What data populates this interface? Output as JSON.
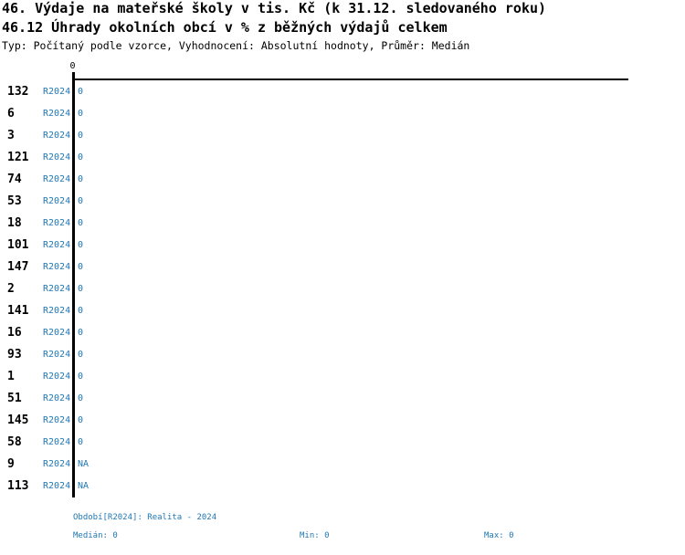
{
  "colors": {
    "accent_blue": "#1f77b4",
    "axis_black": "#000000",
    "background": "#ffffff"
  },
  "chart_data": {
    "type": "bar",
    "orientation": "horizontal",
    "title": "46. Výdaje na mateřské školy v tis. Kč (k 31.12. sledovaného roku)",
    "subtitle": "46.12 Úhrady okolních obcí v % z běžných výdajů celkem",
    "meta": "Typ: Počítaný podle vzorce, Vyhodnocení: Absolutní hodnoty, Průměr: Medián",
    "series_name": "R2024",
    "categories": [
      "132",
      "6",
      "3",
      "121",
      "74",
      "53",
      "18",
      "101",
      "147",
      "2",
      "141",
      "16",
      "93",
      "1",
      "51",
      "145",
      "58",
      "9",
      "113"
    ],
    "values": [
      0,
      0,
      0,
      0,
      0,
      0,
      0,
      0,
      0,
      0,
      0,
      0,
      0,
      0,
      0,
      0,
      0,
      null,
      null
    ],
    "value_labels": [
      "0",
      "0",
      "0",
      "0",
      "0",
      "0",
      "0",
      "0",
      "0",
      "0",
      "0",
      "0",
      "0",
      "0",
      "0",
      "0",
      "0",
      "NA",
      "NA"
    ],
    "x_ticks": [
      "0"
    ],
    "xlim": [
      0,
      null
    ],
    "value_axis_position": "top",
    "grid": false,
    "legend": "none",
    "bar_color": "#1f77b4",
    "period": "Realita - 2024",
    "stats": {
      "median": 0,
      "min": 0,
      "max": 0
    }
  },
  "footer": {
    "period": "Období[R2024]: Realita - 2024",
    "median": "Medián: 0",
    "min": "Min: 0",
    "max": "Max: 0"
  }
}
